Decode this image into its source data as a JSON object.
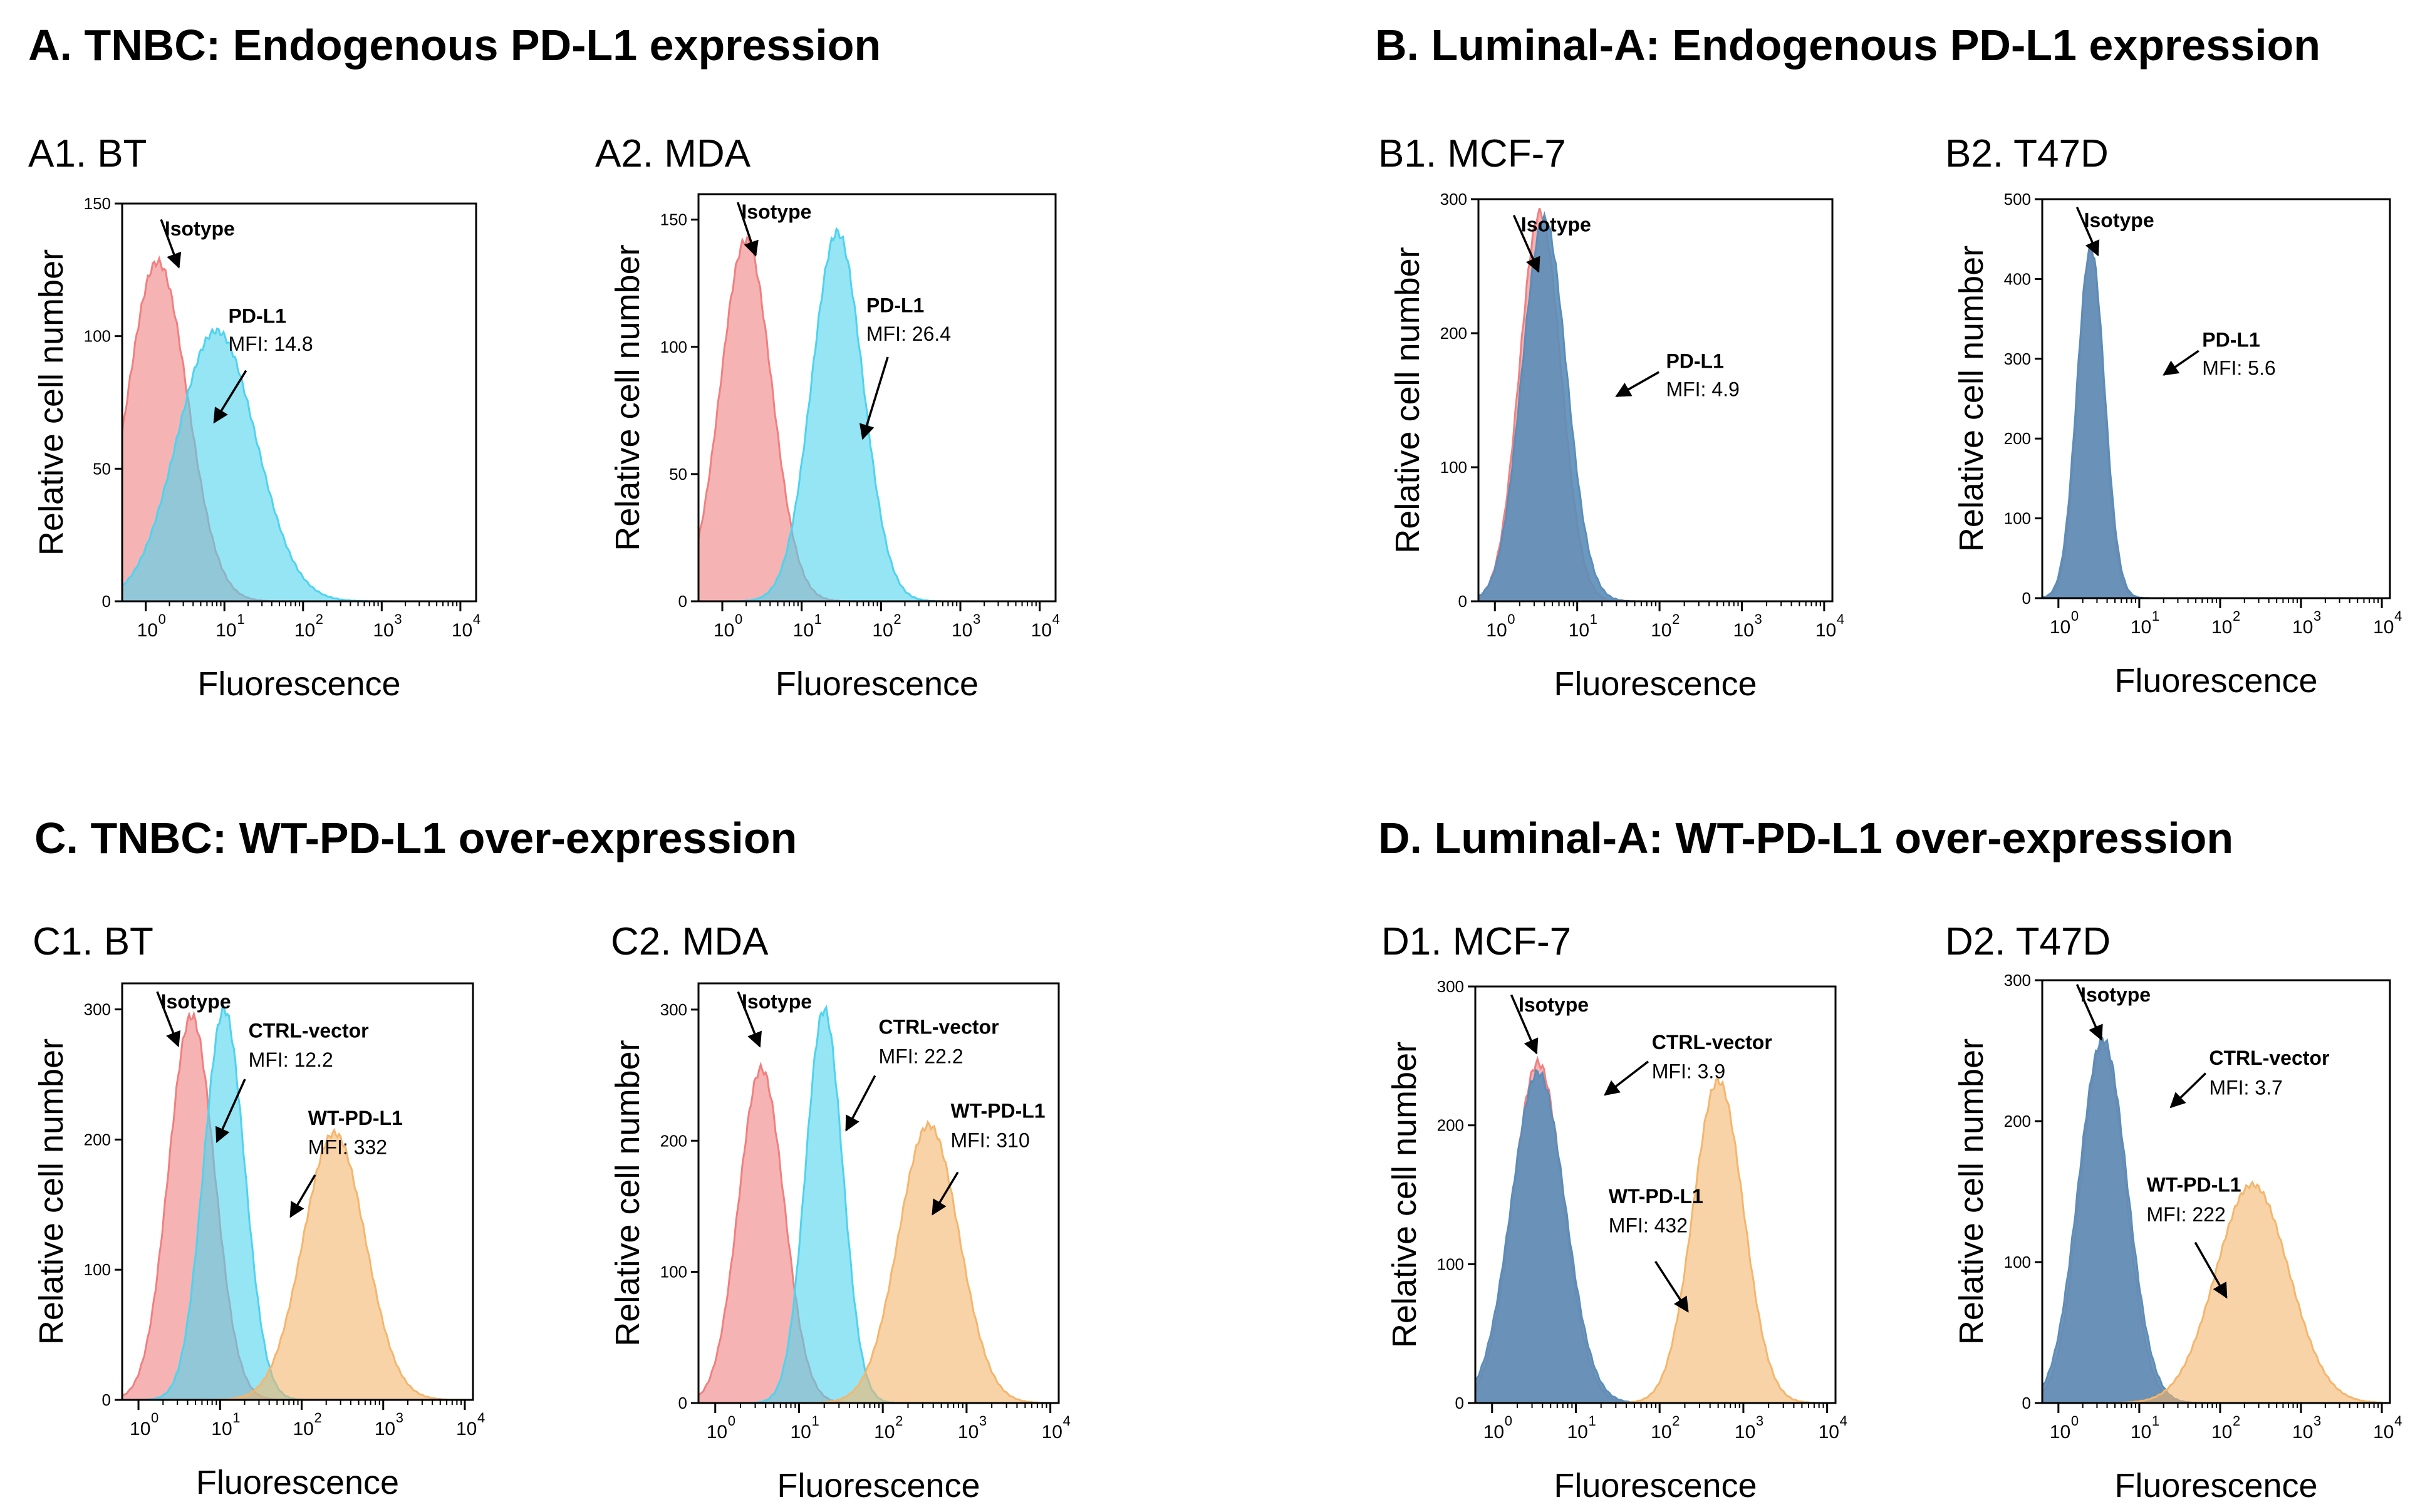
{
  "sections": [
    {
      "id": "A",
      "title": "A. TNBC: Endogenous PD-L1 expression"
    },
    {
      "id": "B",
      "title": "B. Luminal-A: Endogenous PD-L1 expression"
    },
    {
      "id": "C",
      "title": "C. TNBC: WT-PD-L1 over-expression"
    },
    {
      "id": "D",
      "title": "D. Luminal-A: WT-PD-L1 over-expression"
    }
  ],
  "axis_labels": {
    "x": "Fluorescence",
    "y": "Relative cell number"
  },
  "colors": {
    "isotype": "#f08080",
    "pdl1": "#4fd3ee",
    "overlap": "#5b8db8",
    "wt": "#f4b66d"
  },
  "chart_data": [
    {
      "id": "A1",
      "label": "A1. BT",
      "type": "area",
      "title": "A1. BT",
      "xlabel": "Fluorescence",
      "ylabel": "Relative cell number",
      "x_scale": "log",
      "xlim": [
        -0.3,
        4.2
      ],
      "ylim": [
        0,
        150
      ],
      "x_ticks": [
        0,
        1,
        2,
        3,
        4
      ],
      "y_ticks": [
        0,
        50,
        100,
        150
      ],
      "series": [
        {
          "name": "Isotype",
          "peak_log10": 0.15,
          "peak_count": 128,
          "width": 0.38,
          "color": "isotype"
        },
        {
          "name": "PD-L1",
          "peak_log10": 0.9,
          "peak_count": 102,
          "width": 0.5,
          "color": "pdl1",
          "mfi": 14.8
        }
      ],
      "annotations": [
        {
          "text": "Isotype",
          "bold": true
        },
        {
          "text": "PD-L1",
          "bold": true
        },
        {
          "text": "MFI: 14.8",
          "bold": false
        }
      ]
    },
    {
      "id": "A2",
      "label": "A2. MDA",
      "type": "area",
      "title": "A2. MDA",
      "xlabel": "Fluorescence",
      "ylabel": "Relative cell number",
      "x_scale": "log",
      "xlim": [
        -0.3,
        4.2
      ],
      "ylim": [
        0,
        160
      ],
      "x_ticks": [
        0,
        1,
        2,
        3,
        4
      ],
      "y_ticks": [
        0,
        50,
        100,
        150
      ],
      "series": [
        {
          "name": "Isotype",
          "peak_log10": 0.3,
          "peak_count": 142,
          "width": 0.32,
          "color": "isotype"
        },
        {
          "name": "PD-L1",
          "peak_log10": 1.45,
          "peak_count": 145,
          "width": 0.32,
          "color": "pdl1",
          "mfi": 26.4
        }
      ],
      "annotations": [
        {
          "text": "Isotype",
          "bold": true
        },
        {
          "text": "PD-L1",
          "bold": true
        },
        {
          "text": "MFI: 26.4",
          "bold": false
        }
      ]
    },
    {
      "id": "B1",
      "label": "B1. MCF-7",
      "type": "area",
      "title": "B1. MCF-7",
      "xlabel": "Fluorescence",
      "ylabel": "Relative cell number",
      "x_scale": "log",
      "xlim": [
        -0.2,
        4.1
      ],
      "ylim": [
        0,
        300
      ],
      "x_ticks": [
        0,
        1,
        2,
        3,
        4
      ],
      "y_ticks": [
        0,
        100,
        200,
        300
      ],
      "series": [
        {
          "name": "Isotype",
          "peak_log10": 0.55,
          "peak_count": 290,
          "width": 0.25,
          "color": "isotype"
        },
        {
          "name": "PD-L1",
          "peak_log10": 0.6,
          "peak_count": 285,
          "width": 0.27,
          "color": "overlap",
          "mfi": 4.9
        }
      ],
      "annotations": [
        {
          "text": "Isotype",
          "bold": true
        },
        {
          "text": "PD-L1",
          "bold": true
        },
        {
          "text": "MFI: 4.9",
          "bold": false
        }
      ]
    },
    {
      "id": "B2",
      "label": "B2. T47D",
      "type": "area",
      "title": "B2. T47D",
      "xlabel": "Fluorescence",
      "ylabel": "Relative cell number",
      "x_scale": "log",
      "xlim": [
        -0.2,
        4.1
      ],
      "ylim": [
        0,
        500
      ],
      "x_ticks": [
        0,
        1,
        2,
        3,
        4
      ],
      "y_ticks": [
        0,
        100,
        200,
        300,
        400,
        500
      ],
      "series": [
        {
          "name": "Isotype",
          "peak_log10": 0.4,
          "peak_count": 440,
          "width": 0.16,
          "color": "isotype"
        },
        {
          "name": "PD-L1",
          "peak_log10": 0.4,
          "peak_count": 438,
          "width": 0.17,
          "color": "overlap",
          "mfi": 5.6
        }
      ],
      "annotations": [
        {
          "text": "Isotype",
          "bold": true
        },
        {
          "text": "PD-L1",
          "bold": true
        },
        {
          "text": "MFI: 5.6",
          "bold": false
        }
      ]
    },
    {
      "id": "C1",
      "label": "C1. BT",
      "type": "area",
      "title": "C1. BT",
      "xlabel": "Fluorescence",
      "ylabel": "Relative cell number",
      "x_scale": "log",
      "xlim": [
        -0.2,
        4.1
      ],
      "ylim": [
        0,
        320
      ],
      "x_ticks": [
        0,
        1,
        2,
        3,
        4
      ],
      "y_ticks": [
        0,
        100,
        200,
        300
      ],
      "series": [
        {
          "name": "Isotype",
          "peak_log10": 0.65,
          "peak_count": 295,
          "width": 0.28,
          "color": "isotype"
        },
        {
          "name": "CTRL-vector",
          "peak_log10": 1.05,
          "peak_count": 300,
          "width": 0.25,
          "color": "pdl1",
          "mfi": 12.2
        },
        {
          "name": "WT-PD-L1",
          "peak_log10": 2.4,
          "peak_count": 205,
          "width": 0.38,
          "color": "wt",
          "mfi": 332
        }
      ],
      "annotations": [
        {
          "text": "Isotype",
          "bold": true
        },
        {
          "text": "CTRL-vector",
          "bold": true
        },
        {
          "text": "MFI: 12.2",
          "bold": false
        },
        {
          "text": "WT-PD-L1",
          "bold": true
        },
        {
          "text": "MFI: 332",
          "bold": false
        }
      ]
    },
    {
      "id": "C2",
      "label": "C2. MDA",
      "type": "area",
      "title": "C2. MDA",
      "xlabel": "Fluorescence",
      "ylabel": "Relative cell number",
      "x_scale": "log",
      "xlim": [
        -0.2,
        4.1
      ],
      "ylim": [
        0,
        320
      ],
      "x_ticks": [
        0,
        1,
        2,
        3,
        4
      ],
      "y_ticks": [
        0,
        100,
        200,
        300
      ],
      "series": [
        {
          "name": "Isotype",
          "peak_log10": 0.55,
          "peak_count": 255,
          "width": 0.27,
          "color": "isotype"
        },
        {
          "name": "CTRL-vector",
          "peak_log10": 1.3,
          "peak_count": 300,
          "width": 0.22,
          "color": "pdl1",
          "mfi": 22.2
        },
        {
          "name": "WT-PD-L1",
          "peak_log10": 2.55,
          "peak_count": 212,
          "width": 0.36,
          "color": "wt",
          "mfi": 310
        }
      ],
      "annotations": [
        {
          "text": "Isotype",
          "bold": true
        },
        {
          "text": "CTRL-vector",
          "bold": true
        },
        {
          "text": "MFI: 22.2",
          "bold": false
        },
        {
          "text": "WT-PD-L1",
          "bold": true
        },
        {
          "text": "MFI: 310",
          "bold": false
        }
      ]
    },
    {
      "id": "D1",
      "label": "D1. MCF-7",
      "type": "area",
      "title": "D1. MCF-7",
      "xlabel": "Fluorescence",
      "ylabel": "Relative cell number",
      "x_scale": "log",
      "xlim": [
        -0.2,
        4.1
      ],
      "ylim": [
        0,
        300
      ],
      "x_ticks": [
        0,
        1,
        2,
        3,
        4
      ],
      "y_ticks": [
        0,
        100,
        200,
        300
      ],
      "series": [
        {
          "name": "Isotype",
          "peak_log10": 0.55,
          "peak_count": 245,
          "width": 0.3,
          "color": "isotype"
        },
        {
          "name": "CTRL-vector",
          "peak_log10": 0.55,
          "peak_count": 238,
          "width": 0.32,
          "color": "overlap",
          "mfi": 3.9
        },
        {
          "name": "WT-PD-L1",
          "peak_log10": 2.7,
          "peak_count": 232,
          "width": 0.3,
          "color": "wt",
          "mfi": 432
        }
      ],
      "annotations": [
        {
          "text": "Isotype",
          "bold": true
        },
        {
          "text": "CTRL-vector",
          "bold": true
        },
        {
          "text": "MFI: 3.9",
          "bold": false
        },
        {
          "text": "WT-PD-L1",
          "bold": true
        },
        {
          "text": "MFI: 432",
          "bold": false
        }
      ]
    },
    {
      "id": "D2",
      "label": "D2. T47D",
      "type": "area",
      "title": "D2. T47D",
      "xlabel": "Fluorescence",
      "ylabel": "Relative cell number",
      "x_scale": "log",
      "xlim": [
        -0.2,
        4.1
      ],
      "ylim": [
        0,
        300
      ],
      "x_ticks": [
        0,
        1,
        2,
        3,
        4
      ],
      "y_ticks": [
        0,
        100,
        200,
        300
      ],
      "series": [
        {
          "name": "Isotype",
          "peak_log10": 0.55,
          "peak_count": 255,
          "width": 0.28,
          "color": "isotype"
        },
        {
          "name": "CTRL-vector",
          "peak_log10": 0.55,
          "peak_count": 258,
          "width": 0.3,
          "color": "overlap",
          "mfi": 3.7
        },
        {
          "name": "WT-PD-L1",
          "peak_log10": 2.4,
          "peak_count": 155,
          "width": 0.45,
          "color": "wt",
          "mfi": 222
        }
      ],
      "annotations": [
        {
          "text": "Isotype",
          "bold": true
        },
        {
          "text": "CTRL-vector",
          "bold": true
        },
        {
          "text": "MFI: 3.7",
          "bold": false
        },
        {
          "text": "WT-PD-L1",
          "bold": true
        },
        {
          "text": "MFI: 222",
          "bold": false
        }
      ]
    }
  ]
}
